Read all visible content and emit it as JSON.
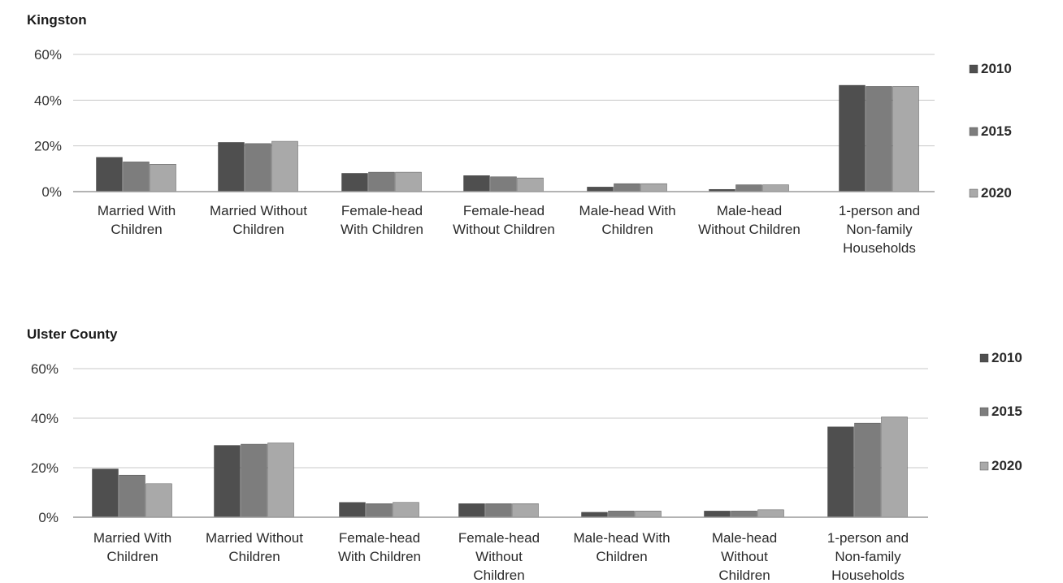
{
  "series_colors": {
    "2010": "#4f4f4f",
    "2015": "#7d7d7d",
    "2020": "#a9a9a9"
  },
  "chart_data": [
    {
      "type": "bar",
      "title": "Kingston",
      "categories": [
        [
          "Married With",
          "Children"
        ],
        [
          "Married Without",
          "Children"
        ],
        [
          "Female-head",
          "With Children"
        ],
        [
          "Female-head",
          "Without Children"
        ],
        [
          "Male-head With",
          "Children"
        ],
        [
          "Male-head",
          "Without Children"
        ],
        [
          "1-person and",
          "Non-family",
          "Households"
        ]
      ],
      "series": [
        {
          "name": "2010",
          "values": [
            15,
            21.5,
            8,
            7,
            2,
            1,
            46.5
          ]
        },
        {
          "name": "2015",
          "values": [
            13,
            21,
            8.5,
            6.5,
            3.5,
            3,
            46
          ]
        },
        {
          "name": "2020",
          "values": [
            12,
            22,
            8.5,
            6,
            3.5,
            3,
            46
          ]
        }
      ],
      "yticks": [
        "0%",
        "20%",
        "40%",
        "60%"
      ],
      "ylim": [
        0,
        60
      ],
      "grid": true,
      "legend": "right"
    },
    {
      "type": "bar",
      "title": "Ulster County",
      "categories": [
        [
          "Married With",
          "Children"
        ],
        [
          "Married Without",
          "Children"
        ],
        [
          "Female-head",
          "With Children"
        ],
        [
          "Female-head",
          "Without",
          "Children"
        ],
        [
          "Male-head With",
          "Children"
        ],
        [
          "Male-head",
          "Without",
          "Children"
        ],
        [
          "1-person and",
          "Non-family",
          "Households"
        ]
      ],
      "series": [
        {
          "name": "2010",
          "values": [
            19.5,
            29,
            6,
            5.5,
            2,
            2.5,
            36.5
          ]
        },
        {
          "name": "2015",
          "values": [
            17,
            29.5,
            5.5,
            5.5,
            2.5,
            2.5,
            38
          ]
        },
        {
          "name": "2020",
          "values": [
            13.5,
            30,
            6,
            5.5,
            2.5,
            3,
            40.5
          ]
        }
      ],
      "yticks": [
        "0%",
        "20%",
        "40%",
        "60%"
      ],
      "ylim": [
        0,
        60
      ],
      "grid": true,
      "legend": "right"
    }
  ]
}
